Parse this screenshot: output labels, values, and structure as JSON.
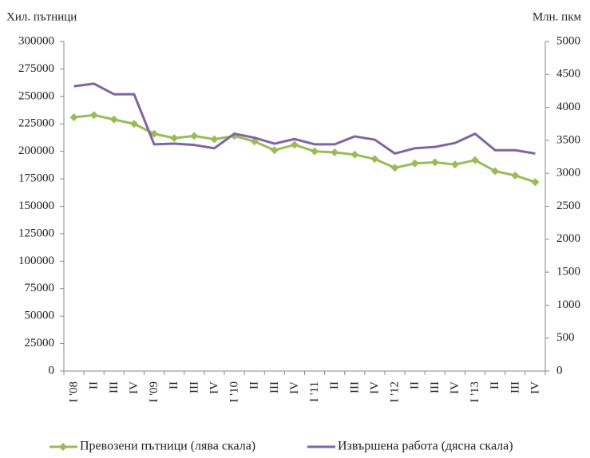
{
  "chart_data": {
    "type": "line",
    "y_label": "Хил. пътници",
    "y2_label": "Млн. пкм",
    "categories": [
      "I '08",
      "II",
      "III",
      "IV",
      "I '09",
      "II",
      "III",
      "IV",
      "I '10",
      "II",
      "III",
      "IV",
      "I '11",
      "II",
      "III",
      "IV",
      "I '12",
      "II",
      "III",
      "IV",
      "I '13",
      "II",
      "III",
      "IV"
    ],
    "ylim": [
      0,
      300000
    ],
    "yticks": [
      0,
      25000,
      50000,
      75000,
      100000,
      125000,
      150000,
      175000,
      200000,
      225000,
      250000,
      275000,
      300000
    ],
    "y2lim": [
      0,
      5000
    ],
    "y2ticks": [
      0,
      500,
      1000,
      1500,
      2000,
      2500,
      3000,
      3500,
      4000,
      4500,
      5000
    ],
    "series": [
      {
        "name": "Превозени пътници (лява скала)",
        "color": "#9bbb59",
        "marker": "diamond",
        "values": [
          231000,
          233000,
          229000,
          225000,
          216000,
          212000,
          214000,
          211000,
          214000,
          209000,
          201000,
          206000,
          200000,
          199000,
          197000,
          193000,
          185000,
          189000,
          190000,
          188000,
          192000,
          182000,
          178000,
          172000
        ]
      },
      {
        "name": "Извършена работа (дясна скала)",
        "color": "#8064a2",
        "axis": "y2",
        "values": [
          4320,
          4360,
          4200,
          4200,
          3440,
          3450,
          3430,
          3380,
          3600,
          3540,
          3450,
          3520,
          3440,
          3440,
          3560,
          3510,
          3300,
          3380,
          3400,
          3460,
          3600,
          3350,
          3350,
          3300
        ]
      }
    ]
  }
}
